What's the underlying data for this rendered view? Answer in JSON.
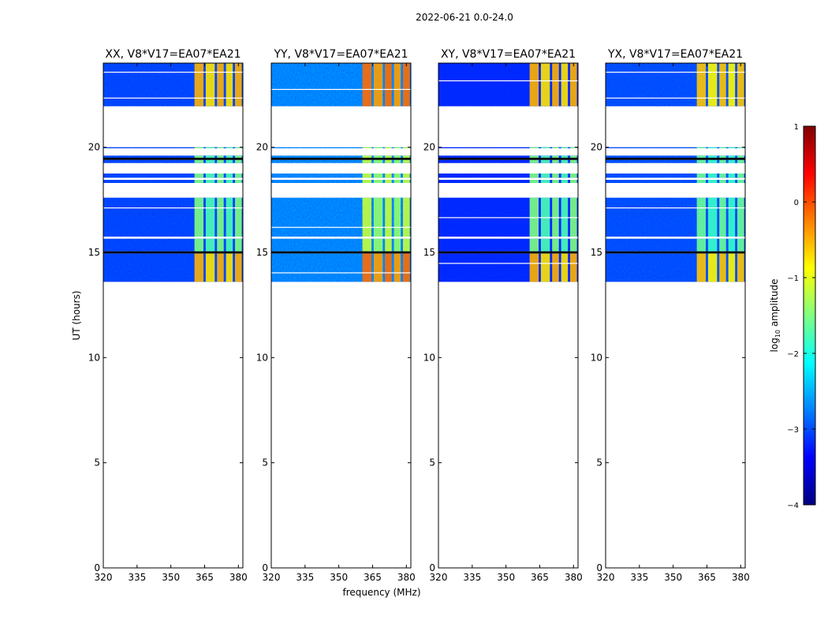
{
  "figure_title": "2022-06-21 0.0-24.0",
  "xlabel": "frequency (MHz)",
  "ylabel": "UT (hours)",
  "colorbar": {
    "label": "log10 amplitude",
    "label_base": "log",
    "label_sub": "10",
    "label_rest": " amplitude",
    "range": [
      -4,
      1
    ],
    "ticks": [
      {
        "value": 1,
        "label": "1"
      },
      {
        "value": 0,
        "label": "0"
      },
      {
        "value": -1,
        "label": "−1"
      },
      {
        "value": -2,
        "label": "−2"
      },
      {
        "value": -3,
        "label": "−3"
      },
      {
        "value": -4,
        "label": "−4"
      }
    ],
    "colormap": "jet",
    "colors": [
      "#000080",
      "#0000ff",
      "#0080ff",
      "#00ffff",
      "#80ff80",
      "#ffff00",
      "#ff8000",
      "#ff0000",
      "#800000"
    ]
  },
  "chart_data": {
    "type": "heatmap",
    "title": "2022-06-21 0.0-24.0",
    "xlabel": "frequency (MHz)",
    "ylabel": "UT (hours)",
    "xlim": [
      320,
      382
    ],
    "ylim": [
      0,
      24
    ],
    "xticks": [
      320,
      335,
      350,
      365,
      380
    ],
    "yticks": [
      0,
      5,
      10,
      15,
      20
    ],
    "panels": [
      {
        "title": "XX, V8*V17=EA07*EA21",
        "pol": "XX"
      },
      {
        "title": "YY, V8*V17=EA07*EA21",
        "pol": "YY"
      },
      {
        "title": "XY, V8*V17=EA07*EA21",
        "pol": "XY"
      },
      {
        "title": "YX, V8*V17=EA07*EA21",
        "pol": "YX"
      }
    ],
    "data_time_ranges_hours": [
      [
        13.6,
        14.95
      ],
      [
        15.05,
        15.65
      ],
      [
        15.75,
        17.6
      ],
      [
        18.3,
        18.45
      ],
      [
        18.55,
        18.75
      ],
      [
        19.25,
        19.4
      ],
      [
        19.5,
        19.6
      ],
      [
        19.95,
        20.0
      ],
      [
        21.95,
        24.0
      ]
    ],
    "flagged_black_bands_hours": [
      [
        14.95,
        15.05
      ],
      [
        19.4,
        19.5
      ]
    ],
    "rfi_frequency_ranges_mhz": [
      [
        360.5,
        364.5
      ],
      [
        365.5,
        369.5
      ],
      [
        370.5,
        373.5
      ],
      [
        374.5,
        377.5
      ],
      [
        378.5,
        381.5
      ]
    ],
    "background_log_amplitude": -3.0,
    "rfi_log_amplitude": -1.5,
    "rfi_peak_log_amplitude": -0.5
  }
}
